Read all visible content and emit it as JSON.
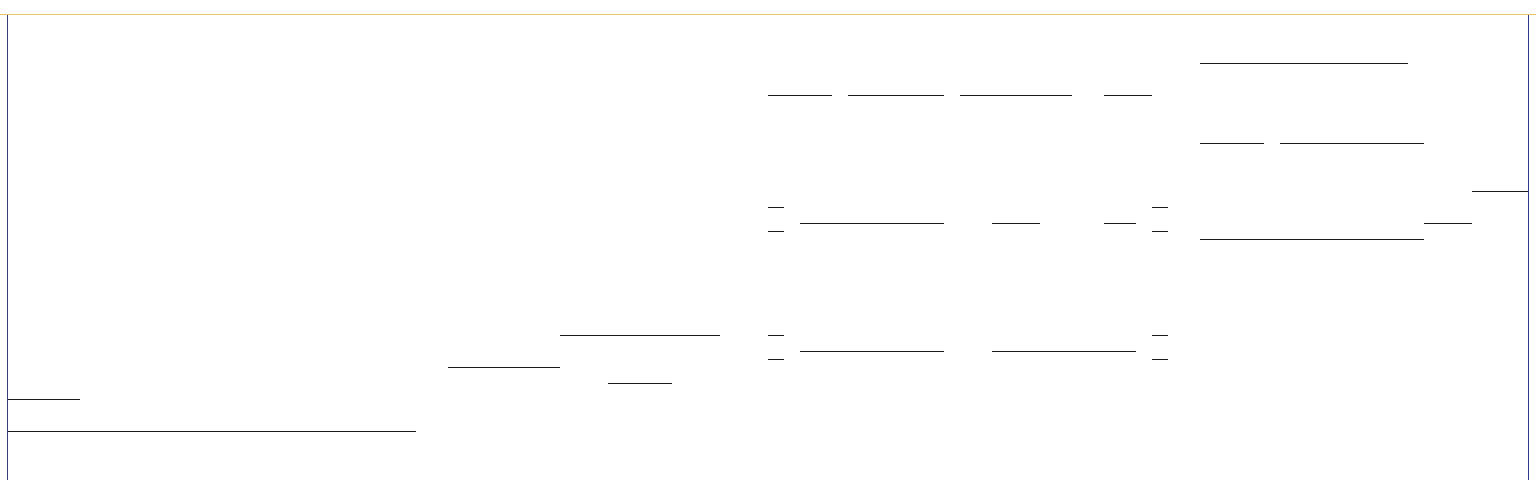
{
  "page": {
    "description": "",
    "colors": {
      "top_rule": "#e8c76a",
      "left_edge": "#3a3f7a",
      "right_edge": "#2f3b8f",
      "rule_line": "#1a1a1a",
      "background": "#ffffff"
    }
  }
}
